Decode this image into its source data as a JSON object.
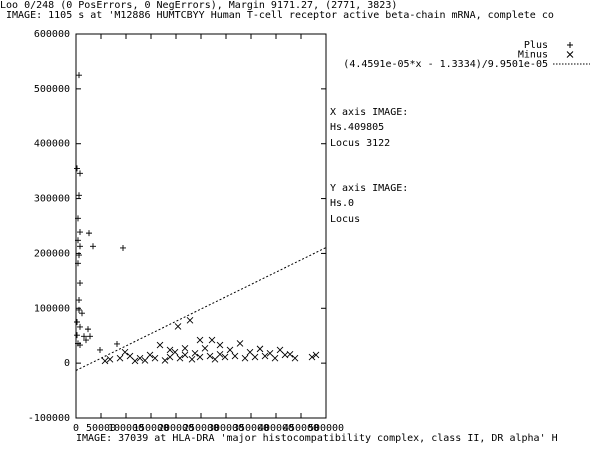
{
  "chart_data": {
    "type": "scatter",
    "title": "Loo 0/248 (0 PosErrors, 0 NegErrors), Margin 9171.27, (2771, 3823)",
    "y_label": "IMAGE: 1105 s at 'M12886 HUMTCBYY Human T-cell receptor active beta-chain mRNA, complete co",
    "x_label": "IMAGE: 37039 at HLA-DRA 'major histocompatibility complex, class II, DR alpha' H",
    "annotations": [
      "X axis IMAGE:",
      "Hs.409805",
      "Locus 3122",
      "Y axis IMAGE:",
      "Hs.0",
      "Locus"
    ],
    "xlim": [
      0,
      500000
    ],
    "xticks": [
      0,
      50000,
      100000,
      150000,
      200000,
      250000,
      300000,
      350000,
      400000,
      450000,
      500000
    ],
    "ylim": [
      -100000,
      600000
    ],
    "yticks": [
      -100000,
      0,
      100000,
      200000,
      300000,
      400000,
      500000,
      600000
    ],
    "legend": "top-right",
    "series": [
      {
        "name": "Plus",
        "color": "#000000",
        "marker": "plus",
        "x": [
          6000,
          2000,
          8000,
          6000,
          4000,
          8000,
          26000,
          4000,
          8000,
          34000,
          94000,
          6000,
          4000,
          8000,
          6000,
          6000,
          12000,
          2000,
          8000,
          24000,
          2000,
          16000,
          28000,
          4000,
          20000,
          48000,
          82000,
          8000
        ],
        "values": [
          525000,
          355000,
          346000,
          306000,
          264000,
          239000,
          237000,
          224000,
          213000,
          213000,
          210000,
          197000,
          182000,
          146000,
          115000,
          97000,
          91000,
          75000,
          66000,
          62000,
          51000,
          49000,
          49000,
          36000,
          42000,
          24000,
          35000,
          33000
        ]
      },
      {
        "name": "Minus",
        "color": "#000000",
        "marker": "cross",
        "x": [
          58000,
          88000,
          108000,
          128000,
          138000,
          148000,
          158000,
          168000,
          178000,
          188000,
          198000,
          204000,
          208000,
          218000,
          228000,
          232000,
          238000,
          248000,
          258000,
          268000,
          272000,
          278000,
          288000,
          298000,
          308000,
          318000,
          328000,
          338000,
          348000,
          358000,
          368000,
          378000,
          388000,
          398000,
          408000,
          418000,
          428000,
          438000,
          472000,
          480000,
          68000,
          98000,
          118000,
          248000,
          288000,
          188000,
          218000
        ],
        "values": [
          4000,
          9000,
          13000,
          9000,
          5000,
          15000,
          9000,
          33000,
          5000,
          11000,
          20000,
          67000,
          9000,
          15000,
          78000,
          7000,
          18000,
          11000,
          27000,
          13000,
          42000,
          7000,
          16000,
          11000,
          24000,
          13000,
          36000,
          9000,
          20000,
          11000,
          26000,
          13000,
          18000,
          9000,
          24000,
          15000,
          16000,
          9000,
          11000,
          15000,
          7000,
          20000,
          4000,
          42000,
          33000,
          24000,
          27000
        ]
      },
      {
        "name": "(4.4591e-05*x - 1.3334)/9.9501e-05",
        "color": "#000000",
        "style": "dotted",
        "x": [
          0,
          500000
        ],
        "values": [
          -13400,
          210670
        ]
      }
    ]
  }
}
